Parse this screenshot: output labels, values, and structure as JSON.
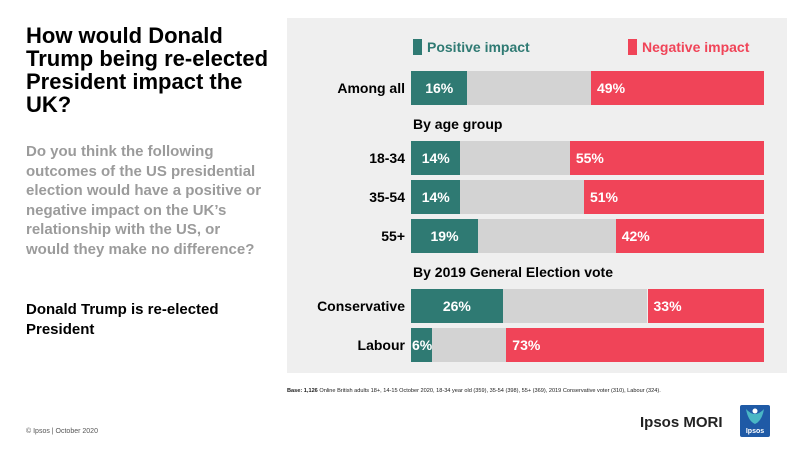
{
  "title": "How would Donald Trump being re-elected President impact the UK?",
  "subtitle": "Do you think the following outcomes of the US presidential election would have a positive or negative impact on the UK’s relationship with the US, or would they make no difference?",
  "statement": "Donald Trump is re-elected President",
  "footer": {
    "copyright": "© Ipsos | October 2020",
    "base_label": "Base: 1,126",
    "base_text": " Online British adults 18+, 14-15 October 2020, 18-34 year old (359), 35-54 (398), 55+ (369), 2019 Conservative  voter (310), Labour (324)."
  },
  "logo": {
    "name": "Ipsos MORI",
    "box_text": "Ipsos"
  },
  "colors": {
    "positive": "#2f7a73",
    "negative": "#f04458",
    "neutral": "#d3d3d3",
    "panel": "#efefef",
    "logo_blue": "#1f5aa6"
  },
  "chart_data": {
    "type": "bar",
    "orientation": "horizontal-stacked",
    "legend": {
      "positive": "Positive impact",
      "negative": "Negative impact"
    },
    "scale_max": 100,
    "groups": [
      {
        "heading": "",
        "rows": [
          {
            "label": "Among all",
            "positive": 16,
            "negative": 49
          }
        ]
      },
      {
        "heading": "By age group",
        "rows": [
          {
            "label": "18-34",
            "positive": 14,
            "negative": 55
          },
          {
            "label": "35-54",
            "positive": 14,
            "negative": 51
          },
          {
            "label": "55+",
            "positive": 19,
            "negative": 42
          }
        ]
      },
      {
        "heading": "By 2019 General Election vote",
        "rows": [
          {
            "label": "Conservative",
            "positive": 26,
            "negative": 33
          },
          {
            "label": "Labour",
            "positive": 6,
            "negative": 73
          }
        ]
      }
    ]
  }
}
